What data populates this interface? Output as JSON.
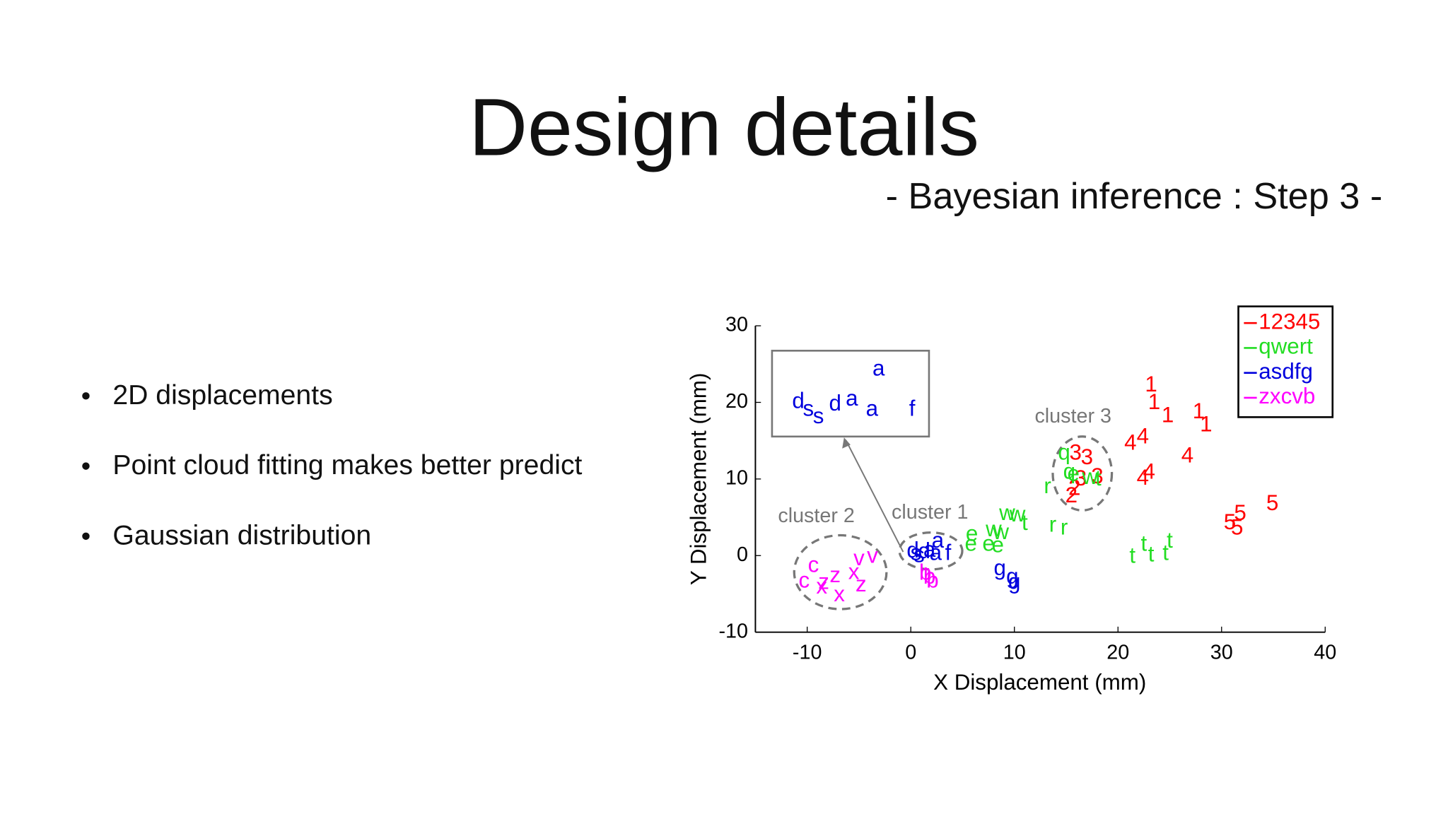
{
  "slide": {
    "title": "Design details",
    "subtitle": "- Bayesian inference : Step 3 -",
    "bullets": [
      "2D displacements",
      "Point cloud fitting makes better predict",
      "Gaussian distribution"
    ]
  },
  "chart_data": {
    "type": "scatter",
    "xlabel": "X Displacement (mm)",
    "ylabel": "Y Displacement (mm)",
    "xlim": [
      -15,
      40
    ],
    "ylim": [
      -10,
      30
    ],
    "xticks": [
      -10,
      0,
      10,
      20,
      30,
      40
    ],
    "yticks": [
      -10,
      0,
      10,
      20,
      30
    ],
    "legend": "upper right",
    "annotations": [
      "cluster 1",
      "cluster 2",
      "cluster 3"
    ],
    "series": [
      {
        "name": "12345",
        "color": "#ff0000",
        "x": [
          23.2,
          23.5,
          24.8,
          27.8,
          28.5,
          21.2,
          22.4,
          26.7,
          23,
          22.4,
          15.9,
          17,
          18,
          16.4,
          15.8,
          15.5,
          34.9,
          31.8,
          30.8,
          31.5
        ],
        "y": [
          22.2,
          19.9,
          18.2,
          18.7,
          17,
          14.6,
          15.4,
          12.9,
          10.8,
          10,
          13.3,
          12.7,
          10.2,
          9.9,
          8.7,
          7.7,
          6.7,
          5.4,
          4.2,
          3.5
        ],
        "labels": [
          "1",
          "1",
          "1",
          "1",
          "1",
          "4",
          "4",
          "4",
          "4",
          "4",
          "3",
          "3",
          "3",
          "3",
          "2",
          "2",
          "5",
          "5",
          "5",
          "5"
        ]
      },
      {
        "name": "qwert",
        "color": "#22dd22",
        "x": [
          14.8,
          15.3,
          17.3,
          15.7,
          18.1,
          13.2,
          5.9,
          5.8,
          7.5,
          8.4,
          9.3,
          10.3,
          8,
          8.7,
          13.7,
          14.8,
          11,
          21.4,
          22.5,
          23.2,
          24.6,
          25
        ],
        "y": [
          13.3,
          10.8,
          10.1,
          10.5,
          9.9,
          8.9,
          2.7,
          1.4,
          1.4,
          1.2,
          5.4,
          5.2,
          3.3,
          2.9,
          3.9,
          3.5,
          4.1,
          -0.2,
          1.4,
          0,
          0.2,
          1.8
        ],
        "labels": [
          "q",
          "q",
          "w",
          "e",
          "t",
          "r",
          "e",
          "e",
          "e",
          "e",
          "w",
          "w",
          "w",
          "w",
          "r",
          "r",
          "t",
          "t",
          "t",
          "t",
          "t",
          "t"
        ]
      },
      {
        "name": "asdfg",
        "color": "#0000dd",
        "x": [
          2.6,
          0.5,
          0.2,
          3.6,
          1.8,
          2.4,
          0.8,
          1.3,
          8.6,
          9.8,
          10
        ],
        "y": [
          1.8,
          0.2,
          0.5,
          0.2,
          0.6,
          0.2,
          -0.1,
          0.4,
          -1.8,
          -2.9,
          -3.6
        ],
        "labels": [
          "a",
          "s",
          "d",
          "f",
          "a",
          "a",
          "s",
          "d",
          "g",
          "g",
          "g"
        ]
      },
      {
        "name": "zxcvb",
        "color": "#ff00ff",
        "x": [
          -9.4,
          -10.3,
          -8.4,
          -7.3,
          -4.8,
          -8.6,
          -6.9,
          -5.5,
          -5,
          -3.7,
          1.4,
          2.1,
          1.8
        ],
        "y": [
          -1.4,
          -3.4,
          -3.6,
          -2.7,
          -3.9,
          -4.2,
          -5.2,
          -2.3,
          -0.5,
          -0.2,
          -2.4,
          -3.4,
          -2.9
        ],
        "labels": [
          "c",
          "c",
          "z",
          "z",
          "z",
          "x",
          "x",
          "x",
          "v",
          "v",
          "b",
          "b",
          "b"
        ]
      }
    ]
  }
}
